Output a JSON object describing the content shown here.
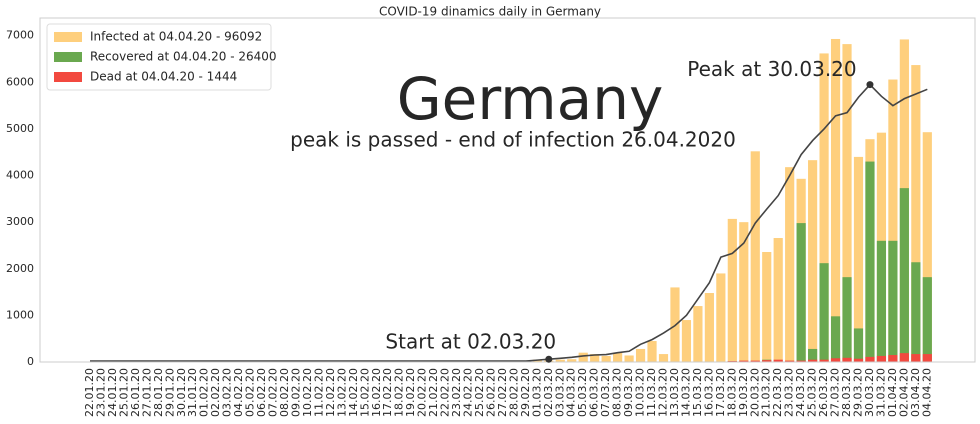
{
  "chart_data": {
    "type": "bar",
    "title": "COVID-19 dinamics daily in Germany",
    "annotations": [
      "Germany",
      "peak is passed - end of infection 26.04.2020"
    ],
    "categories": [
      "22.01.20",
      "23.01.20",
      "24.01.20",
      "25.01.20",
      "26.01.20",
      "27.01.20",
      "28.01.20",
      "29.01.20",
      "30.01.20",
      "31.01.20",
      "01.02.20",
      "02.02.20",
      "03.02.20",
      "04.02.20",
      "05.02.20",
      "06.02.20",
      "07.02.20",
      "08.02.20",
      "09.02.20",
      "10.02.20",
      "11.02.20",
      "12.02.20",
      "13.02.20",
      "14.02.20",
      "15.02.20",
      "16.02.20",
      "17.02.20",
      "18.02.20",
      "19.02.20",
      "20.02.20",
      "21.02.20",
      "22.02.20",
      "23.02.20",
      "24.02.20",
      "25.02.20",
      "26.02.20",
      "27.02.20",
      "28.02.20",
      "29.02.20",
      "01.03.20",
      "02.03.20",
      "03.03.20",
      "04.03.20",
      "05.03.20",
      "06.03.20",
      "07.03.20",
      "08.03.20",
      "09.03.20",
      "10.03.20",
      "11.03.20",
      "12.03.20",
      "13.03.20",
      "14.03.20",
      "15.03.20",
      "16.03.20",
      "17.03.20",
      "18.03.20",
      "19.03.20",
      "20.03.20",
      "21.03.20",
      "22.03.20",
      "23.03.20",
      "24.03.20",
      "25.03.20",
      "26.03.20",
      "27.03.20",
      "28.03.20",
      "29.03.20",
      "30.03.20",
      "31.03.20",
      "01.04.20",
      "02.04.20",
      "03.04.20",
      "04.04.20"
    ],
    "series": [
      {
        "name": "Infected at 04.04.20 - 96092",
        "color": "#fecf7d",
        "values": [
          0,
          0,
          0,
          0,
          0,
          0,
          1,
          3,
          0,
          0,
          1,
          2,
          0,
          0,
          0,
          0,
          0,
          0,
          0,
          0,
          0,
          0,
          0,
          0,
          0,
          0,
          0,
          0,
          0,
          0,
          0,
          0,
          0,
          0,
          5,
          10,
          20,
          30,
          20,
          50,
          30,
          50,
          60,
          200,
          170,
          130,
          200,
          140,
          280,
          450,
          170,
          1600,
          900,
          1200,
          1480,
          1900,
          3070,
          3000,
          4520,
          2360,
          2660,
          4180,
          3930,
          4330,
          6620,
          6930,
          6820,
          4400,
          4780,
          4920,
          6060,
          6920,
          6370,
          4930
        ]
      },
      {
        "name": "Recovered at 04.04.20 - 26400",
        "color": "#6aa84f",
        "values": [
          0,
          0,
          0,
          0,
          0,
          0,
          0,
          0,
          0,
          0,
          0,
          0,
          0,
          0,
          0,
          0,
          0,
          0,
          0,
          0,
          0,
          0,
          0,
          0,
          0,
          0,
          0,
          0,
          0,
          0,
          0,
          0,
          0,
          0,
          0,
          0,
          0,
          0,
          0,
          0,
          0,
          0,
          0,
          0,
          0,
          0,
          0,
          0,
          0,
          0,
          0,
          0,
          0,
          0,
          0,
          0,
          20,
          0,
          0,
          50,
          0,
          0,
          2980,
          280,
          2120,
          980,
          1820,
          720,
          4300,
          2600,
          2600,
          3730,
          2140,
          1820
        ]
      },
      {
        "name": "Dead at 04.04.20 - 1444",
        "color": "#f2493f",
        "values": [
          0,
          0,
          0,
          0,
          0,
          0,
          0,
          0,
          0,
          0,
          0,
          0,
          0,
          0,
          0,
          0,
          0,
          0,
          0,
          0,
          0,
          0,
          0,
          0,
          0,
          0,
          0,
          0,
          0,
          0,
          0,
          0,
          0,
          0,
          0,
          0,
          0,
          0,
          0,
          0,
          0,
          0,
          0,
          0,
          0,
          0,
          0,
          2,
          2,
          3,
          4,
          5,
          5,
          8,
          10,
          10,
          20,
          30,
          30,
          40,
          50,
          30,
          30,
          50,
          50,
          80,
          90,
          70,
          110,
          130,
          150,
          190,
          170,
          170
        ]
      }
    ],
    "line": {
      "color": "#444444",
      "values": [
        20,
        20,
        20,
        20,
        20,
        20,
        20,
        20,
        20,
        20,
        20,
        20,
        20,
        20,
        20,
        20,
        20,
        20,
        20,
        20,
        20,
        20,
        20,
        20,
        20,
        20,
        20,
        20,
        20,
        20,
        20,
        20,
        20,
        20,
        20,
        20,
        20,
        20,
        20,
        40,
        60,
        80,
        100,
        130,
        150,
        160,
        200,
        230,
        380,
        480,
        620,
        780,
        1000,
        1350,
        1700,
        2250,
        2330,
        2550,
        2980,
        3280,
        3570,
        4000,
        4450,
        4750,
        5000,
        5280,
        5350,
        5680,
        5950,
        5700,
        5500,
        5650,
        5750,
        5850
      ]
    },
    "points": [
      {
        "category": "02.03.20",
        "value": 60,
        "label": "Start at 02.03.20"
      },
      {
        "category": "30.03.20",
        "value": 5950,
        "label": "Peak at 30.03.20"
      }
    ],
    "ylim": [
      0,
      7380
    ],
    "yticks": [
      0,
      1000,
      2000,
      3000,
      4000,
      5000,
      6000,
      7000
    ],
    "grid": false,
    "legend": "upper left"
  }
}
